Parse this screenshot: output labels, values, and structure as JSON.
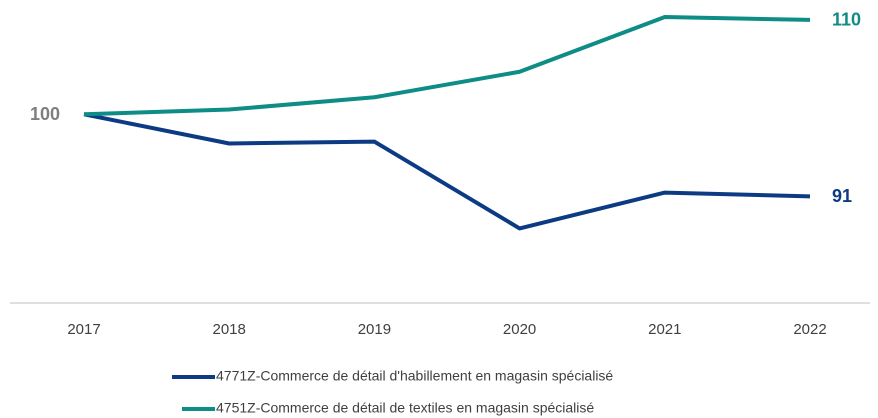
{
  "chart_data": {
    "type": "line",
    "categories": [
      "2017",
      "2018",
      "2019",
      "2020",
      "2021",
      "2022"
    ],
    "series": [
      {
        "name": "4771Z-Commerce de détail d'habillement en magasin spécialisé",
        "color": "#0d3b83",
        "values": [
          100,
          96.9,
          97.1,
          87.9,
          91.7,
          91.3
        ],
        "value_labels": [
          "100",
          null,
          null,
          null,
          null,
          "91"
        ]
      },
      {
        "name": "4751Z-Commerce de détail de textiles en magasin spécialisé",
        "color": "#0e8c86",
        "values": [
          100,
          100.5,
          101.8,
          104.5,
          110.3,
          110
        ],
        "value_labels": [
          null,
          null,
          null,
          null,
          null,
          "110"
        ]
      }
    ],
    "ylim": [
      80,
      112
    ]
  }
}
